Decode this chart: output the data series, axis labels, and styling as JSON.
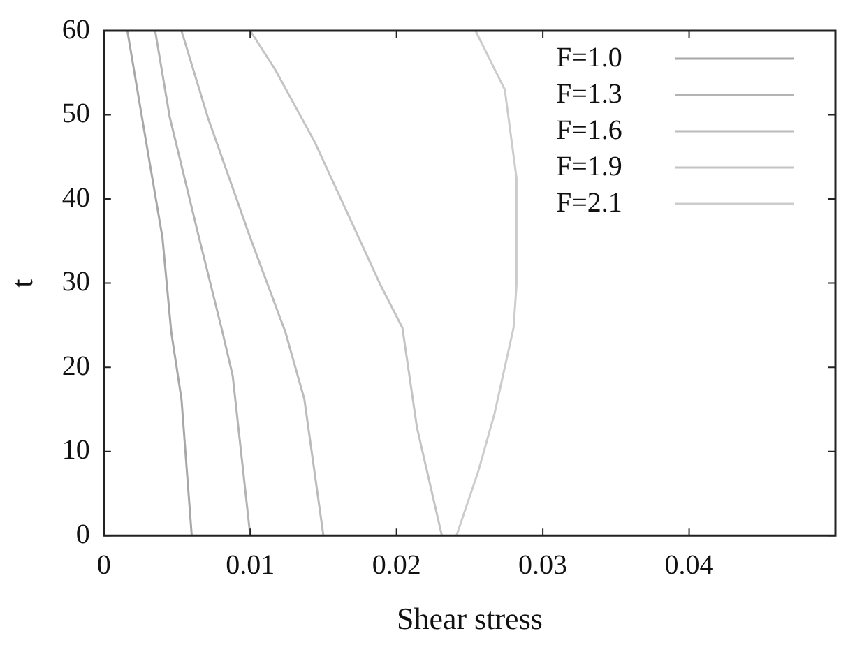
{
  "chart_data": {
    "type": "line",
    "xlabel": "Shear stress",
    "ylabel": "t",
    "xlim": [
      0,
      0.05
    ],
    "xticks": [
      0,
      0.01,
      0.02,
      0.03,
      0.04
    ],
    "ylim": [
      0,
      60
    ],
    "yticks": [
      0,
      10,
      20,
      30,
      40,
      50,
      60
    ],
    "grid": false,
    "legend": "top right",
    "marker": "none",
    "line_style": "solid",
    "series": [
      {
        "name": "F=1.0",
        "color": "#a8a8a8",
        "x": [
          0.0016,
          0.0026,
          0.004,
          0.0046,
          0.0053,
          0.006
        ],
        "values": [
          60,
          49.7,
          35.4,
          24.2,
          16.2,
          0
        ]
      },
      {
        "name": "F=1.3",
        "color": "#b4b4b4",
        "x": [
          0.0035,
          0.0045,
          0.0065,
          0.0081,
          0.0088,
          0.01
        ],
        "values": [
          60,
          49.7,
          35.4,
          24.2,
          19,
          0
        ]
      },
      {
        "name": "F=1.6",
        "color": "#bcbcbc",
        "x": [
          0.0053,
          0.0071,
          0.01,
          0.0124,
          0.0137,
          0.015
        ],
        "values": [
          60,
          49.7,
          35.4,
          24.2,
          16.2,
          0
        ]
      },
      {
        "name": "F=1.9",
        "color": "#c4c4c4",
        "x": [
          0.01,
          0.0117,
          0.0144,
          0.0189,
          0.0204,
          0.0214,
          0.0231
        ],
        "values": [
          60,
          55.4,
          46.8,
          29.8,
          24.7,
          12.8,
          0
        ]
      },
      {
        "name": "F=2.1",
        "color": "#cccccc",
        "x": [
          0.0254,
          0.0274,
          0.0282,
          0.0282,
          0.028,
          0.0267,
          0.0256,
          0.0241
        ],
        "values": [
          60,
          53,
          42.5,
          29.8,
          24.7,
          14.5,
          7.7,
          0
        ]
      }
    ]
  }
}
